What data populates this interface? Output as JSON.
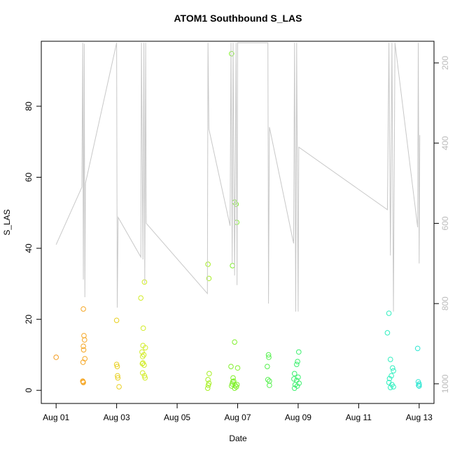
{
  "chart_data": {
    "type": "scatter",
    "title": "ATOM1 Southbound S_LAS",
    "x_label": "Date",
    "y_label": "S_LAS",
    "xlim": [
      -0.49,
      12.49
    ],
    "ylim": [
      -3.7,
      98.3
    ],
    "xticks": [
      {
        "value": 0,
        "label": "Aug 01"
      },
      {
        "value": 2,
        "label": "Aug 03"
      },
      {
        "value": 4,
        "label": "Aug 05"
      },
      {
        "value": 6,
        "label": "Aug 07"
      },
      {
        "value": 8,
        "label": "Aug 09"
      },
      {
        "value": 10,
        "label": "Aug 11"
      },
      {
        "value": 12,
        "label": "Aug 13"
      }
    ],
    "yticks": [
      0,
      20,
      40,
      60,
      80
    ],
    "y2lim": [
      1049,
      146
    ],
    "y2ticks": [
      200,
      400,
      600,
      800,
      1000
    ],
    "series": [
      {
        "color": "#f39c1f",
        "x": [
          0
        ],
        "values": [
          9.3
        ]
      },
      {
        "color": "#f5a623",
        "x": [
          0.9,
          0.92,
          0.94,
          0.9,
          0.91,
          0.95,
          0.89,
          0.88,
          0.9,
          0.89
        ],
        "values": [
          22.9,
          15.4,
          14.2,
          12.4,
          11.4,
          8.9,
          7.9,
          2.6,
          2.2,
          2.4
        ]
      },
      {
        "color": "#e8cf1e",
        "x": [
          2.0,
          2.0,
          2.02,
          2.03,
          2.04,
          2.08
        ],
        "values": [
          19.7,
          7.3,
          6.7,
          4.1,
          3.5,
          1.0
        ]
      },
      {
        "color": "#d2ec28",
        "x": [
          2.8,
          2.92,
          2.88,
          2.87,
          2.95,
          2.84,
          2.9,
          2.86,
          2.85,
          2.91,
          2.87,
          2.86,
          2.92,
          2.94
        ],
        "values": [
          26,
          30.5,
          17.5,
          12.6,
          12,
          10.8,
          10,
          9.5,
          7.5,
          7.1,
          7.7,
          4.9,
          4.1,
          3.5
        ]
      },
      {
        "color": "#a6ef22",
        "x": [
          5.02,
          5.05,
          5.06,
          5.02,
          5.05,
          5.03,
          5.01
        ],
        "values": [
          35.5,
          31.5,
          4.7,
          3,
          2,
          1.4,
          0.6
        ]
      },
      {
        "color": "#7ff02a",
        "x": [
          5.8,
          5.83,
          5.9,
          5.95,
          5.97,
          5.9,
          5.78,
          6.0,
          5.85,
          5.87,
          5.82,
          5.92,
          5.8,
          5.96,
          5.9,
          5.84,
          5.98
        ],
        "values": [
          94.8,
          35.1,
          53,
          52.4,
          47.3,
          13.6,
          6.7,
          6.3,
          3.5,
          2.6,
          1.8,
          1.4,
          1.2,
          1.0,
          0.6,
          2.4,
          1.6
        ]
      },
      {
        "color": "#55f04e",
        "x": [
          7.02,
          7.03,
          6.98,
          7.0,
          7.05,
          7.05
        ],
        "values": [
          10,
          9.3,
          6.7,
          3,
          2.6,
          1.4
        ]
      },
      {
        "color": "#3cf06e",
        "x": [
          8.02,
          7.98,
          7.95,
          7.88,
          8.0,
          7.86,
          7.95,
          8.03,
          7.9,
          7.97,
          7.88
        ],
        "values": [
          10.8,
          8.1,
          7.3,
          4.7,
          3.7,
          3.2,
          2.8,
          2,
          1.6,
          1.2,
          0.6
        ]
      },
      {
        "color": "#2fefbf",
        "x": [
          11.0,
          10.95,
          11.05,
          11.12,
          11.15,
          11.08,
          11.02,
          11.0,
          11.1,
          11.15,
          11.05
        ],
        "values": [
          21.7,
          16.2,
          8.7,
          6.3,
          5.5,
          4.1,
          3.3,
          2.2,
          1.6,
          1.0,
          0.8
        ]
      },
      {
        "color": "#2ee6d2",
        "x": [
          11.95,
          11.97,
          12.0,
          11.98,
          12.0
        ],
        "values": [
          11.8,
          2.4,
          1.8,
          1.4,
          1.2
        ]
      },
      {
        "type": "line",
        "axis": "y2",
        "color": "#c8c8c8",
        "x": [
          0,
          0.85,
          0.88,
          0.9,
          0.93,
          0.95,
          0.97,
          2.0,
          2.02,
          2.05,
          2.8,
          2.82,
          2.87,
          2.9,
          2.93,
          2.96,
          2.98,
          5.0,
          5.02,
          5.05,
          5.75,
          5.78,
          5.82,
          5.85,
          5.9,
          5.95,
          5.98,
          6.0,
          7.0,
          7.02,
          7.05,
          7.85,
          7.88,
          7.92,
          7.95,
          8.0,
          8.02,
          10.95,
          11.0,
          11.05,
          11.1,
          11.15,
          11.2,
          11.95,
          11.97,
          12.0,
          12.02
        ],
        "values": [
          653,
          510,
          150,
          740,
          152,
          784,
          500,
          150,
          810,
          585,
          684,
          150,
          690,
          150,
          750,
          150,
          600,
          775,
          150,
          365,
          606,
          150,
          700,
          150,
          730,
          150,
          754,
          150,
          150,
          800,
          360,
          650,
          150,
          820,
          150,
          820,
          410,
          566,
          150,
          680,
          150,
          820,
          150,
          610,
          150,
          700,
          380
        ]
      }
    ]
  }
}
